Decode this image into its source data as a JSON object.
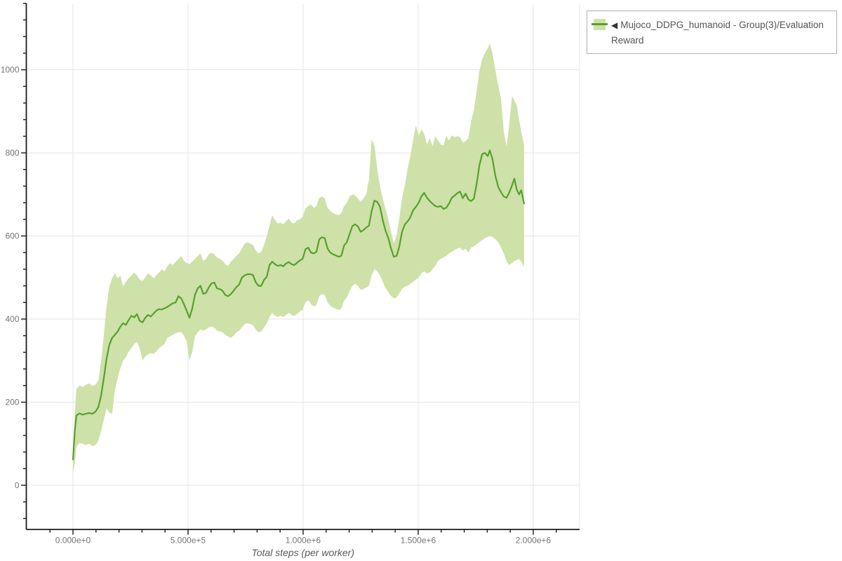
{
  "colors": {
    "line": "#57a02b",
    "band": "#cde1a9",
    "grid": "#e6e6e6",
    "axis": "#1a1a1a",
    "tick_label": "#757575",
    "axis_title": "#5a5a5a",
    "legend_border": "#b0b0b0",
    "legend_text": "#555555",
    "background": "#ffffff"
  },
  "legend": {
    "marker": "◀",
    "label": "Mujoco_DDPG_humanoid - Group(3)/Evaluation Reward"
  },
  "chart_data": {
    "type": "line",
    "title": "",
    "xlabel": "Total steps (per worker)",
    "ylabel": "",
    "grid": true,
    "legend_position": "top-right",
    "xlim": [
      -200000,
      2200000
    ],
    "ylim": [
      -106,
      1160
    ],
    "x_axis": {
      "title": "Total steps (per worker)",
      "major_ticks": [
        {
          "value": 0,
          "label": "0.000e+0"
        },
        {
          "value": 500000,
          "label": "5.000e+5"
        },
        {
          "value": 1000000,
          "label": "1.000e+6"
        },
        {
          "value": 1500000,
          "label": "1.500e+6"
        },
        {
          "value": 2000000,
          "label": "2.000e+6"
        }
      ],
      "minor_tick_interval": 100000,
      "minor_range": [
        -100000,
        2100000
      ]
    },
    "y_axis": {
      "major_ticks": [
        {
          "value": 0,
          "label": "0"
        },
        {
          "value": 200,
          "label": "200"
        },
        {
          "value": 400,
          "label": "400"
        },
        {
          "value": 600,
          "label": "600"
        },
        {
          "value": 800,
          "label": "800"
        },
        {
          "value": 1000,
          "label": "1000"
        }
      ],
      "minor_tick_interval": 40,
      "minor_range": [
        -80,
        1160
      ]
    },
    "series": [
      {
        "name": "Mujoco_DDPG_humanoid - Group(3)/Evaluation Reward",
        "color": "#57a02b",
        "band_color": "#cde1a9",
        "point_format": [
          "steps",
          "mean",
          "band_low",
          "band_high"
        ],
        "points": [
          [
            0,
            62,
            30,
            80
          ],
          [
            8000,
            130,
            52,
            178
          ],
          [
            15000,
            168,
            92,
            232
          ],
          [
            28000,
            173,
            102,
            240
          ],
          [
            42000,
            170,
            100,
            237
          ],
          [
            56000,
            172,
            97,
            242
          ],
          [
            70000,
            174,
            100,
            245
          ],
          [
            84000,
            172,
            94,
            239
          ],
          [
            98000,
            177,
            97,
            242
          ],
          [
            110000,
            188,
            107,
            252
          ],
          [
            122000,
            215,
            130,
            298
          ],
          [
            134000,
            258,
            158,
            360
          ],
          [
            146000,
            305,
            185,
            432
          ],
          [
            158000,
            338,
            175,
            478
          ],
          [
            170000,
            355,
            172,
            498
          ],
          [
            182000,
            362,
            228,
            510
          ],
          [
            194000,
            370,
            258,
            498
          ],
          [
            206000,
            382,
            282,
            505
          ],
          [
            218000,
            390,
            300,
            478
          ],
          [
            230000,
            386,
            308,
            490
          ],
          [
            242000,
            398,
            322,
            498
          ],
          [
            254000,
            408,
            330,
            505
          ],
          [
            266000,
            404,
            340,
            512
          ],
          [
            278000,
            412,
            345,
            505
          ],
          [
            290000,
            396,
            330,
            495
          ],
          [
            302000,
            392,
            300,
            492
          ],
          [
            314000,
            403,
            310,
            500
          ],
          [
            326000,
            410,
            315,
            510
          ],
          [
            338000,
            406,
            318,
            505
          ],
          [
            350000,
            413,
            316,
            498
          ],
          [
            362000,
            420,
            322,
            505
          ],
          [
            374000,
            424,
            330,
            512
          ],
          [
            386000,
            423,
            335,
            520
          ],
          [
            398000,
            426,
            340,
            515
          ],
          [
            410000,
            429,
            355,
            528
          ],
          [
            422000,
            434,
            358,
            535
          ],
          [
            434000,
            438,
            362,
            530
          ],
          [
            446000,
            440,
            366,
            538
          ],
          [
            458000,
            455,
            368,
            545
          ],
          [
            470000,
            450,
            369,
            552
          ],
          [
            482000,
            436,
            360,
            540
          ],
          [
            494000,
            420,
            346,
            535
          ],
          [
            506000,
            403,
            300,
            532
          ],
          [
            518000,
            425,
            320,
            538
          ],
          [
            530000,
            458,
            358,
            545
          ],
          [
            542000,
            474,
            368,
            552
          ],
          [
            554000,
            480,
            375,
            558
          ],
          [
            566000,
            461,
            372,
            540
          ],
          [
            578000,
            463,
            375,
            545
          ],
          [
            590000,
            476,
            380,
            556
          ],
          [
            602000,
            486,
            382,
            560
          ],
          [
            614000,
            488,
            380,
            556
          ],
          [
            626000,
            474,
            372,
            548
          ],
          [
            638000,
            472,
            370,
            545
          ],
          [
            650000,
            468,
            368,
            540
          ],
          [
            662000,
            458,
            362,
            532
          ],
          [
            674000,
            455,
            358,
            528
          ],
          [
            686000,
            460,
            355,
            538
          ],
          [
            698000,
            468,
            360,
            545
          ],
          [
            710000,
            477,
            368,
            552
          ],
          [
            722000,
            483,
            372,
            558
          ],
          [
            734000,
            500,
            380,
            570
          ],
          [
            746000,
            505,
            388,
            582
          ],
          [
            758000,
            508,
            390,
            585
          ],
          [
            770000,
            508,
            388,
            582
          ],
          [
            782000,
            506,
            385,
            578
          ],
          [
            794000,
            489,
            375,
            565
          ],
          [
            806000,
            480,
            368,
            558
          ],
          [
            818000,
            480,
            370,
            562
          ],
          [
            830000,
            494,
            380,
            578
          ],
          [
            842000,
            502,
            390,
            600
          ],
          [
            854000,
            530,
            405,
            625
          ],
          [
            866000,
            538,
            415,
            650
          ],
          [
            878000,
            532,
            408,
            638
          ],
          [
            890000,
            528,
            405,
            630
          ],
          [
            902000,
            530,
            408,
            632
          ],
          [
            914000,
            527,
            405,
            628
          ],
          [
            926000,
            534,
            410,
            636
          ],
          [
            938000,
            537,
            415,
            642
          ],
          [
            950000,
            532,
            410,
            632
          ],
          [
            962000,
            530,
            408,
            630
          ],
          [
            974000,
            536,
            412,
            638
          ],
          [
            986000,
            541,
            418,
            640
          ],
          [
            998000,
            545,
            422,
            646
          ],
          [
            1010000,
            568,
            440,
            666
          ],
          [
            1022000,
            572,
            445,
            672
          ],
          [
            1034000,
            560,
            436,
            676
          ],
          [
            1046000,
            558,
            430,
            668
          ],
          [
            1058000,
            562,
            434,
            672
          ],
          [
            1070000,
            592,
            455,
            692
          ],
          [
            1082000,
            597,
            460,
            695
          ],
          [
            1094000,
            595,
            458,
            690
          ],
          [
            1106000,
            570,
            440,
            668
          ],
          [
            1118000,
            560,
            432,
            660
          ],
          [
            1130000,
            556,
            428,
            655
          ],
          [
            1142000,
            553,
            425,
            652
          ],
          [
            1154000,
            550,
            422,
            650
          ],
          [
            1166000,
            552,
            425,
            655
          ],
          [
            1178000,
            577,
            445,
            672
          ],
          [
            1190000,
            585,
            452,
            680
          ],
          [
            1202000,
            605,
            468,
            695
          ],
          [
            1214000,
            624,
            480,
            700
          ],
          [
            1226000,
            628,
            485,
            698
          ],
          [
            1238000,
            623,
            480,
            690
          ],
          [
            1250000,
            610,
            470,
            682
          ],
          [
            1262000,
            614,
            472,
            690
          ],
          [
            1274000,
            620,
            476,
            700
          ],
          [
            1286000,
            625,
            480,
            735
          ],
          [
            1298000,
            660,
            505,
            832
          ],
          [
            1310000,
            685,
            520,
            818
          ],
          [
            1322000,
            682,
            515,
            760
          ],
          [
            1334000,
            670,
            505,
            720
          ],
          [
            1346000,
            638,
            490,
            690
          ],
          [
            1358000,
            613,
            475,
            665
          ],
          [
            1370000,
            595,
            465,
            640
          ],
          [
            1382000,
            570,
            455,
            610
          ],
          [
            1394000,
            550,
            450,
            582
          ],
          [
            1406000,
            552,
            452,
            602
          ],
          [
            1418000,
            575,
            462,
            642
          ],
          [
            1430000,
            610,
            472,
            692
          ],
          [
            1442000,
            628,
            478,
            722
          ],
          [
            1454000,
            635,
            480,
            762
          ],
          [
            1466000,
            645,
            485,
            792
          ],
          [
            1478000,
            662,
            490,
            832
          ],
          [
            1490000,
            670,
            495,
            866
          ],
          [
            1502000,
            680,
            500,
            842
          ],
          [
            1514000,
            695,
            510,
            856
          ],
          [
            1526000,
            704,
            515,
            846
          ],
          [
            1538000,
            692,
            510,
            820
          ],
          [
            1550000,
            684,
            512,
            836
          ],
          [
            1562000,
            678,
            520,
            816
          ],
          [
            1574000,
            672,
            528,
            840
          ],
          [
            1586000,
            670,
            540,
            830
          ],
          [
            1598000,
            672,
            545,
            820
          ],
          [
            1610000,
            665,
            548,
            818
          ],
          [
            1622000,
            668,
            552,
            840
          ],
          [
            1634000,
            678,
            558,
            830
          ],
          [
            1646000,
            692,
            562,
            842
          ],
          [
            1658000,
            697,
            566,
            838
          ],
          [
            1670000,
            703,
            570,
            840
          ],
          [
            1682000,
            707,
            572,
            838
          ],
          [
            1694000,
            691,
            565,
            825
          ],
          [
            1706000,
            702,
            570,
            828
          ],
          [
            1718000,
            688,
            560,
            836
          ],
          [
            1730000,
            684,
            572,
            876
          ],
          [
            1742000,
            690,
            575,
            903
          ],
          [
            1754000,
            725,
            580,
            948
          ],
          [
            1766000,
            770,
            585,
            996
          ],
          [
            1778000,
            797,
            590,
            1026
          ],
          [
            1790000,
            800,
            595,
            1040
          ],
          [
            1802000,
            792,
            598,
            1052
          ],
          [
            1811000,
            806,
            600,
            1063
          ],
          [
            1823000,
            785,
            598,
            1040
          ],
          [
            1835000,
            745,
            592,
            1000
          ],
          [
            1848000,
            718,
            585,
            962
          ],
          [
            1860000,
            705,
            572,
            930
          ],
          [
            1872000,
            695,
            558,
            850
          ],
          [
            1884000,
            692,
            538,
            815
          ],
          [
            1896000,
            705,
            530,
            872
          ],
          [
            1908000,
            722,
            535,
            938
          ],
          [
            1918000,
            738,
            540,
            925
          ],
          [
            1928000,
            712,
            542,
            915
          ],
          [
            1938000,
            700,
            545,
            880
          ],
          [
            1948000,
            710,
            538,
            850
          ],
          [
            1960000,
            678,
            525,
            818
          ]
        ]
      }
    ]
  }
}
